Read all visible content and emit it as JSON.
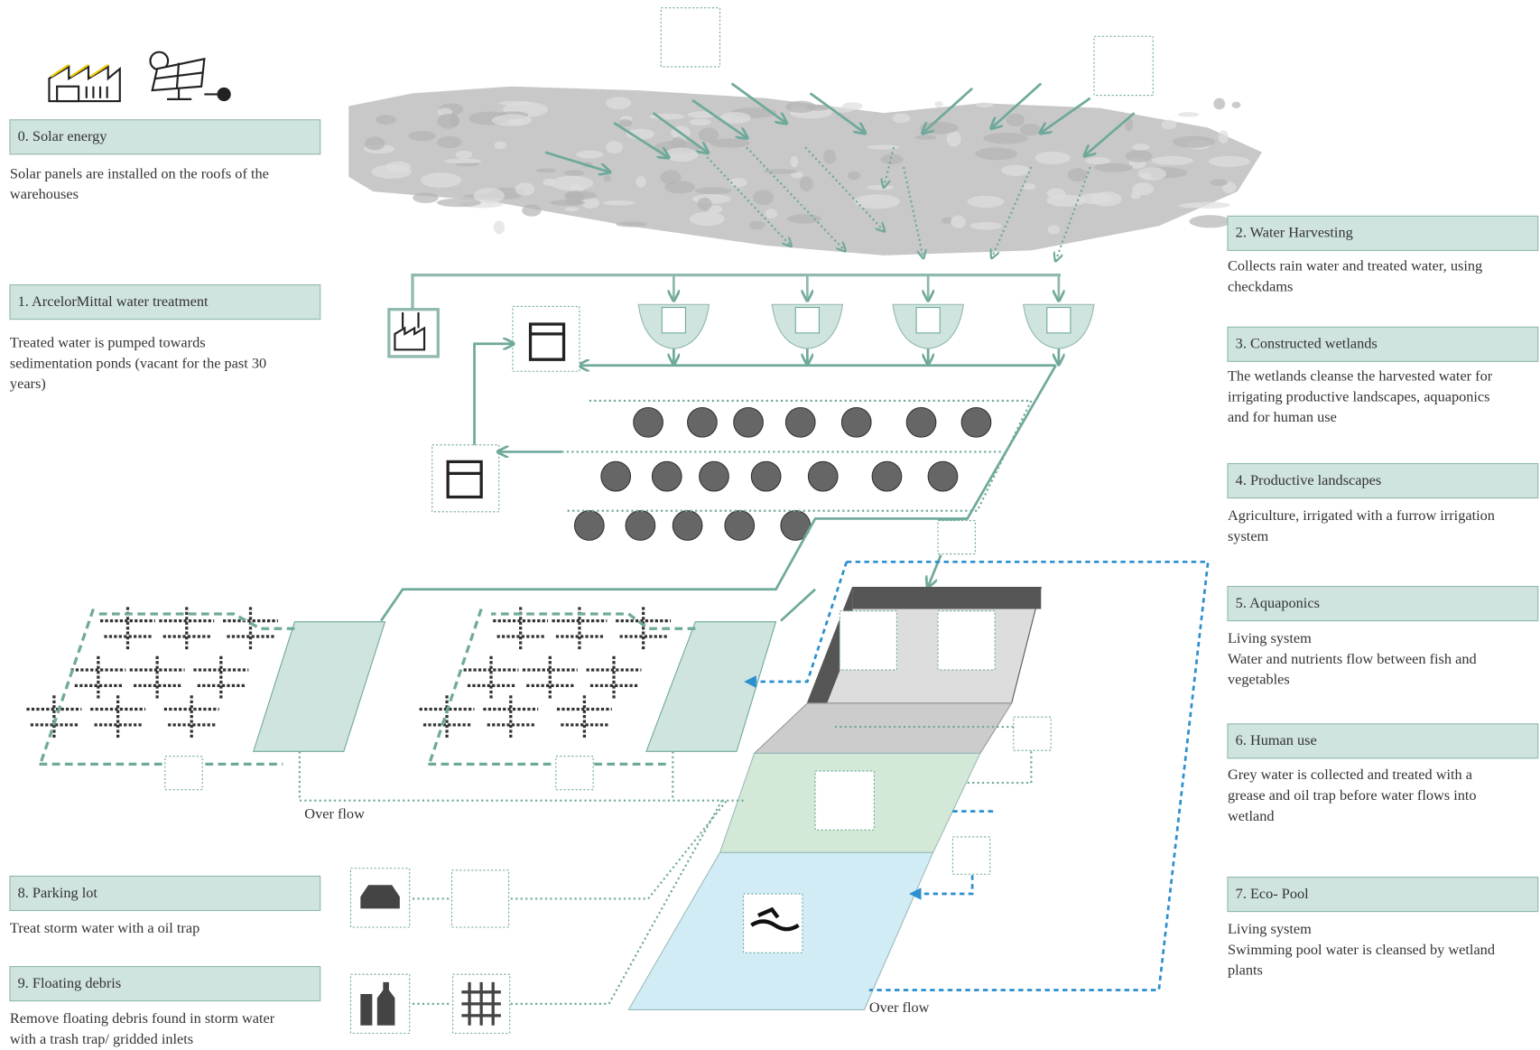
{
  "steps": [
    {
      "title": "0. Solar energy",
      "description": [
        "Solar panels are installed on the roofs of the",
        "warehouses"
      ]
    },
    {
      "title": "1. ArcelorMittal water treatment",
      "description": [
        "Treated water is pumped towards",
        "sedimentation ponds (vacant for the past 30",
        "years)"
      ]
    },
    {
      "title": "2. Water Harvesting",
      "description": [
        "Collects rain water and treated water, using",
        "checkdams"
      ]
    },
    {
      "title": "3. Constructed wetlands",
      "description": [
        "The wetlands cleanse the harvested water for",
        "irrigating productive landscapes, aquaponics",
        "and for human use"
      ]
    },
    {
      "title": "4. Productive landscapes",
      "description": [
        "Agriculture, irrigated with a furrow irrigation",
        "system"
      ]
    },
    {
      "title": "5. Aquaponics",
      "description": [
        "Living system",
        "Water and nutrients flow between fish and",
        "vegetables"
      ]
    },
    {
      "title": "6. Human use",
      "description": [
        "Grey water is collected and treated with a",
        "grease and oil trap before water flows into",
        "wetland"
      ]
    },
    {
      "title": "7. Eco- Pool",
      "description": [
        "Living system",
        "Swimming pool water is cleansed by wetland",
        "plants"
      ]
    },
    {
      "title": "8. Parking lot",
      "description": [
        "Treat storm water with a oil trap"
      ]
    },
    {
      "title": "9. Floating debris",
      "description": [
        "Remove floating debris found in storm water",
        "with a trash trap/ gridded inlets"
      ]
    }
  ],
  "labels": {
    "overflow_left": "Over flow",
    "overflow_bottom": "Over flow"
  }
}
